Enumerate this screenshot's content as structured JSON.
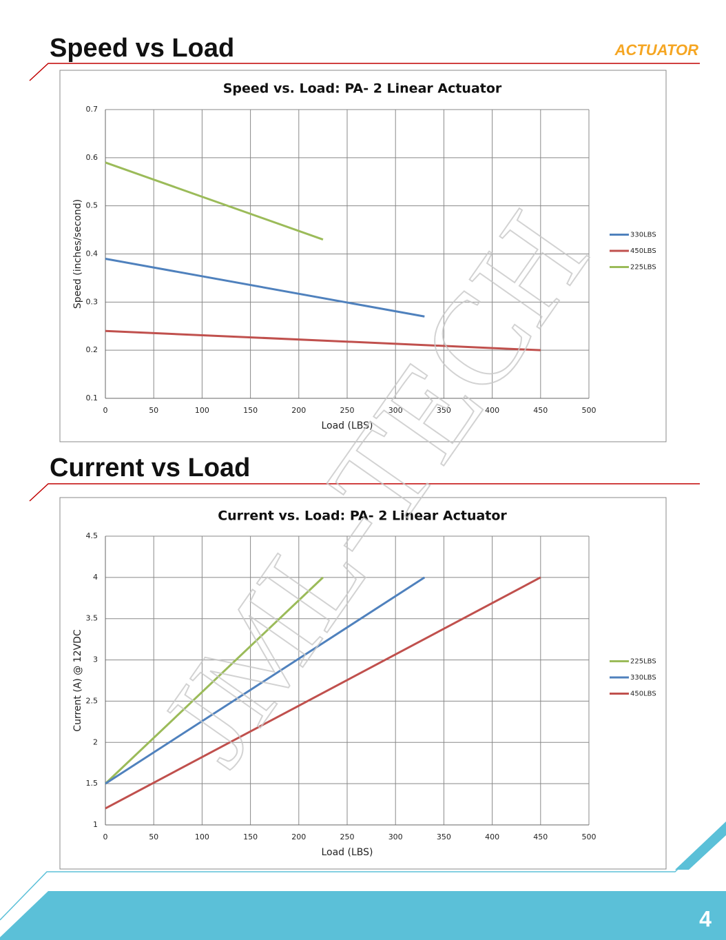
{
  "sections": [
    {
      "heading": "Speed vs Load"
    },
    {
      "heading": "Current vs Load"
    }
  ],
  "logo": "ACTUATOR",
  "watermark": "JML-TECH",
  "page_number": "4",
  "chart_data": [
    {
      "type": "line",
      "title": "Speed vs. Load: PA- 2  Linear Actuator",
      "x_label": "Load (LBS)",
      "y_label": "Speed (inches/second)",
      "xlim": [
        0,
        500
      ],
      "xticks": [
        0,
        50,
        100,
        150,
        200,
        250,
        300,
        350,
        400,
        450,
        500
      ],
      "ylim": [
        0.1,
        0.7
      ],
      "yticks": [
        0.1,
        0.2,
        0.3,
        0.4,
        0.5,
        0.6,
        0.7
      ],
      "grid": true,
      "legend": "right",
      "series": [
        {
          "name": "330LBS",
          "color": "#4f81bd",
          "x": [
            0,
            330
          ],
          "values": [
            0.39,
            0.27
          ]
        },
        {
          "name": "450LBS",
          "color": "#c0504d",
          "x": [
            0,
            450
          ],
          "values": [
            0.24,
            0.2
          ]
        },
        {
          "name": "225LBS",
          "color": "#9bbb59",
          "x": [
            0,
            225
          ],
          "values": [
            0.59,
            0.43
          ]
        }
      ]
    },
    {
      "type": "line",
      "title": "Current vs. Load: PA- 2  Linear Actuator",
      "x_label": "Load (LBS)",
      "y_label": "Current (A) @ 12VDC",
      "xlim": [
        0,
        500
      ],
      "xticks": [
        0,
        50,
        100,
        150,
        200,
        250,
        300,
        350,
        400,
        450,
        500
      ],
      "ylim": [
        1,
        4.5
      ],
      "yticks": [
        1,
        1.5,
        2,
        2.5,
        3,
        3.5,
        4,
        4.5
      ],
      "grid": true,
      "legend": "right",
      "series": [
        {
          "name": "225LBS",
          "color": "#9bbb59",
          "x": [
            0,
            225
          ],
          "values": [
            1.5,
            4
          ]
        },
        {
          "name": "330LBS",
          "color": "#4f81bd",
          "x": [
            0,
            330
          ],
          "values": [
            1.5,
            4
          ]
        },
        {
          "name": "450LBS",
          "color": "#c0504d",
          "x": [
            0,
            450
          ],
          "values": [
            1.2,
            4
          ]
        }
      ]
    }
  ]
}
